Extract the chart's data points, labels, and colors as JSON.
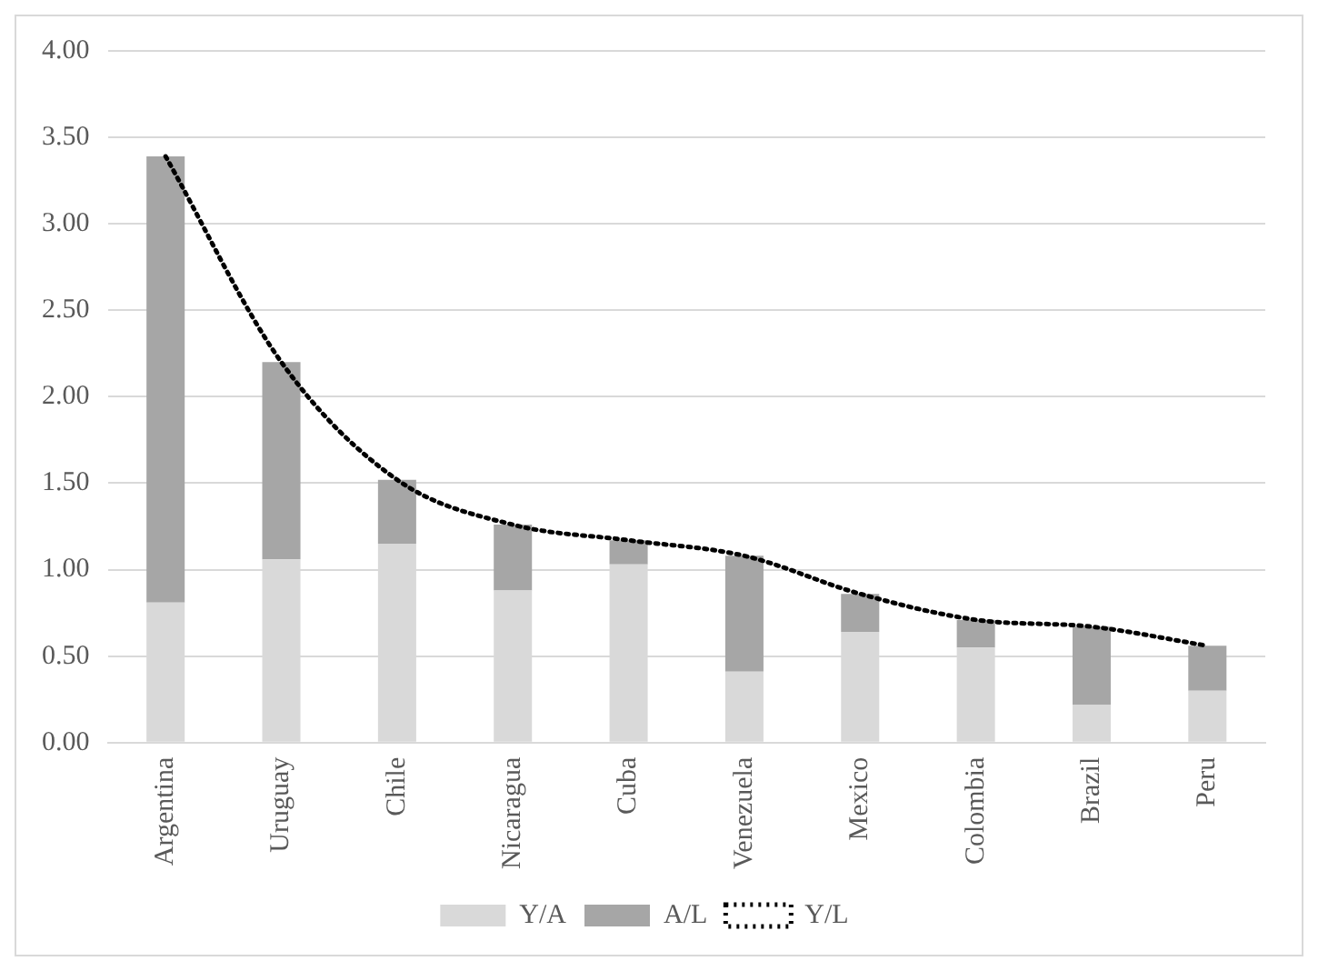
{
  "chart_data": {
    "type": "bar",
    "stacked": true,
    "categories": [
      "Argentina",
      "Uruguay",
      "Chile",
      "Nicaragua",
      "Cuba",
      "Venezuela",
      "Mexico",
      "Colombia",
      "Brazil",
      "Peru"
    ],
    "series": [
      {
        "name": "Y/A",
        "color": "#d9d9d9",
        "values": [
          0.81,
          1.06,
          1.15,
          0.88,
          1.03,
          0.41,
          0.64,
          0.55,
          0.22,
          0.3
        ]
      },
      {
        "name": "A/L",
        "color": "#a6a6a6",
        "values": [
          2.58,
          1.14,
          0.37,
          0.38,
          0.14,
          0.67,
          0.22,
          0.16,
          0.45,
          0.26
        ]
      },
      {
        "name": "Y/L",
        "type": "line",
        "color": "#000000",
        "line_style": "dotted",
        "marker": "none",
        "values": [
          3.39,
          2.2,
          1.52,
          1.26,
          1.17,
          1.08,
          0.86,
          0.71,
          0.67,
          0.56
        ]
      }
    ],
    "ylim": [
      0,
      4
    ],
    "yticks": [
      {
        "value": 0,
        "label": "0.00"
      },
      {
        "value": 0.5,
        "label": "0.50"
      },
      {
        "value": 1,
        "label": "1.00"
      },
      {
        "value": 1.5,
        "label": "1.50"
      },
      {
        "value": 2,
        "label": "2.00"
      },
      {
        "value": 2.5,
        "label": "2.50"
      },
      {
        "value": 3,
        "label": "3.00"
      },
      {
        "value": 3.5,
        "label": "3.50"
      },
      {
        "value": 4,
        "label": "4.00"
      }
    ],
    "grid": "y",
    "legend": "bottom"
  }
}
